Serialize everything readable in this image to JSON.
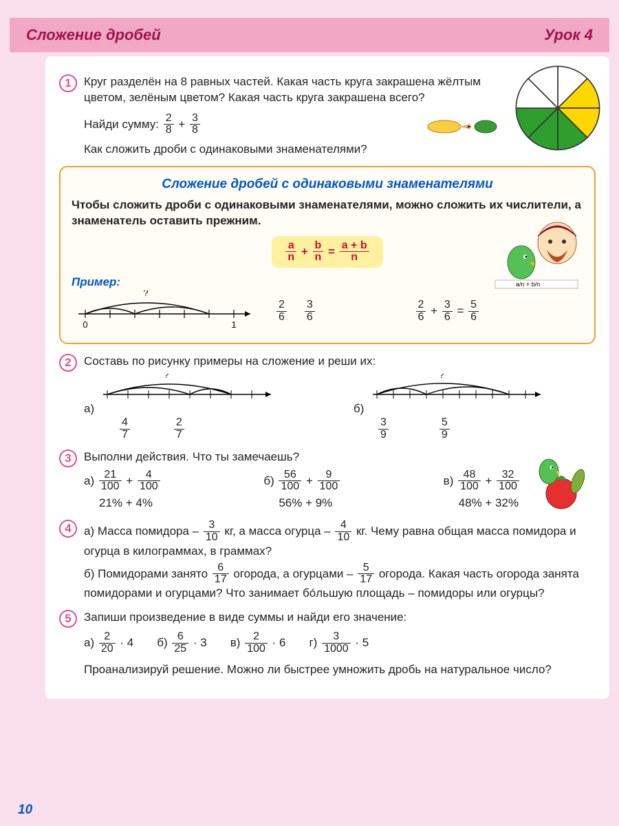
{
  "page": {
    "number": "10"
  },
  "header": {
    "title": "Сложение дробей",
    "lesson": "Урок 4"
  },
  "colors": {
    "page_bg": "#f9e0ec",
    "header_bg": "#f0a8c4",
    "header_text": "#a01050",
    "content_bg": "#ffffff",
    "number_ring": "#e05090",
    "rule_border": "#f0a030",
    "rule_bg": "#fffdf5",
    "formula_bg": "#fff1a0",
    "blue": "#0057c7",
    "red": "#c8102e",
    "pie_yellow": "#ffd700",
    "pie_green": "#2e9e2e",
    "pie_stroke": "#333333"
  },
  "ex1": {
    "num": "1",
    "text1": "Круг разделён на 8 равных частей. Какая часть круга закрашена жёлтым цветом, зелёным цветом? Какая часть круга закрашена всего?",
    "text2a": "Найди сумму:",
    "text3": "Как сложить дроби с одинаковыми знаменателями?",
    "sum": {
      "a_n": "2",
      "a_d": "8",
      "op": "+",
      "b_n": "3",
      "b_d": "8"
    },
    "pie": {
      "segments": 8,
      "fills": [
        "#ffffff",
        "#ffd700",
        "#ffd700",
        "#2e9e2e",
        "#2e9e2e",
        "#2e9e2e",
        "#ffffff",
        "#ffffff"
      ]
    }
  },
  "rule": {
    "title": "Сложение дробей с одинаковыми знаменателями",
    "text": "Чтобы сложить дроби с одинаковыми знаменателями, можно сложить их числители, а знаменатель оставить прежним.",
    "formula": {
      "a": "a",
      "b": "b",
      "n": "n",
      "res_n": "a + b",
      "res_d": "n"
    },
    "example_label": "Пример:",
    "example": {
      "line": {
        "marks": [
          "0",
          "",
          "1"
        ],
        "sub1_n": "2",
        "sub1_d": "6",
        "sub2_n": "3",
        "sub2_d": "6",
        "q": "?"
      },
      "eq": {
        "a_n": "2",
        "a_d": "6",
        "b_n": "3",
        "b_d": "6",
        "r_n": "5",
        "r_d": "6"
      }
    }
  },
  "ex2": {
    "num": "2",
    "text": "Составь по рисунку примеры на сложение и реши их:",
    "a_label": "а)",
    "b_label": "б)",
    "a": {
      "f1_n": "4",
      "f1_d": "7",
      "f2_n": "2",
      "f2_d": "7",
      "q": "?"
    },
    "b": {
      "f1_n": "3",
      "f1_d": "9",
      "f2_n": "5",
      "f2_d": "9",
      "q": "?"
    }
  },
  "ex3": {
    "num": "3",
    "text": "Выполни действия. Что ты замечаешь?",
    "a_label": "а)",
    "b_label": "б)",
    "c_label": "в)",
    "a": {
      "f1_n": "21",
      "f1_d": "100",
      "f2_n": "4",
      "f2_d": "100",
      "pct": "21% + 4%"
    },
    "b": {
      "f1_n": "56",
      "f1_d": "100",
      "f2_n": "9",
      "f2_d": "100",
      "pct": "56% + 9%"
    },
    "c": {
      "f1_n": "48",
      "f1_d": "100",
      "f2_n": "32",
      "f2_d": "100",
      "pct": "48% + 32%"
    }
  },
  "ex4": {
    "num": "4",
    "a_pre": "а) Масса помидора –",
    "a_f1_n": "3",
    "a_f1_d": "10",
    "a_mid": "кг, а масса огурца –",
    "a_f2_n": "4",
    "a_f2_d": "10",
    "a_post": "кг. Чему равна общая масса помидора и огурца в килограммах, в граммах?",
    "b_pre": "б) Помидорами занято",
    "b_f1_n": "6",
    "b_f1_d": "17",
    "b_mid": "огорода, а огурцами –",
    "b_f2_n": "5",
    "b_f2_d": "17",
    "b_post": "огорода. Какая часть огорода занята помидорами и огурцами? Что занимает бо́льшую площадь – помидоры или огурцы?"
  },
  "ex5": {
    "num": "5",
    "text": "Запиши произведение в виде суммы и найди его значение:",
    "a_label": "а)",
    "b_label": "б)",
    "c_label": "в)",
    "d_label": "г)",
    "a": {
      "n": "2",
      "d": "20",
      "m": "4"
    },
    "b": {
      "n": "6",
      "d": "25",
      "m": "3"
    },
    "c": {
      "n": "2",
      "d": "100",
      "m": "6"
    },
    "d": {
      "n": "3",
      "d": "1000",
      "m": "5"
    },
    "text2": "Проанализируй решение. Можно ли быстрее умножить дробь на натуральное число?"
  }
}
